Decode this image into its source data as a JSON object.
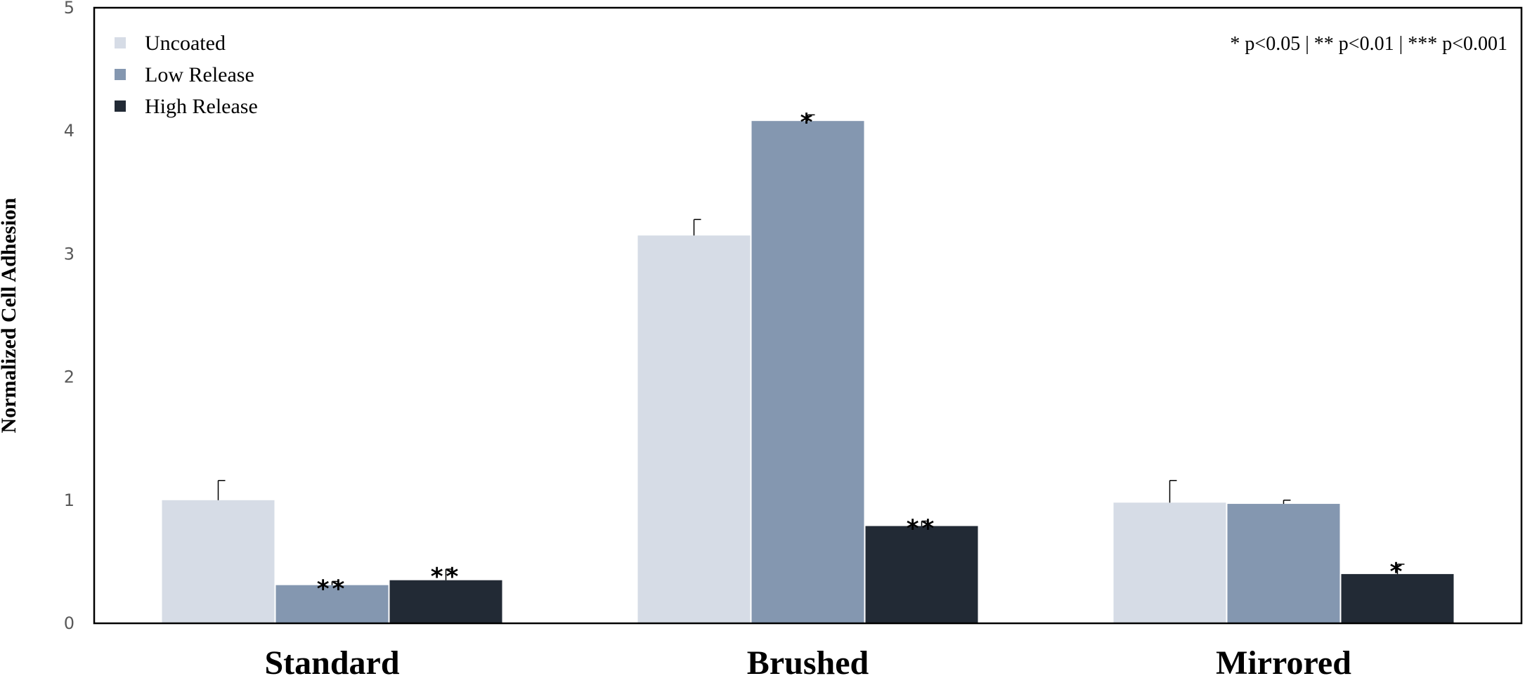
{
  "chart_data": {
    "type": "bar",
    "ylabel": "Normalized Cell Adhesion",
    "xlabel": "",
    "ylim": [
      0,
      5
    ],
    "yticks": [
      "0",
      "1",
      "2",
      "3",
      "4",
      "5"
    ],
    "categories": [
      "Standard",
      "Brushed",
      "Mirrored"
    ],
    "series": [
      {
        "name": "Uncoated",
        "color": "#d6dce6",
        "values": [
          1.0,
          3.15,
          0.98
        ],
        "errors": [
          0.16,
          0.13,
          0.18
        ],
        "significance": [
          "",
          "",
          ""
        ]
      },
      {
        "name": "Low Release",
        "color": "#8497b0",
        "values": [
          0.31,
          4.08,
          0.97
        ],
        "errors": [
          0.03,
          0.05,
          0.03
        ],
        "significance": [
          "**",
          "*",
          ""
        ]
      },
      {
        "name": "High Release",
        "color": "#222a35",
        "values": [
          0.35,
          0.79,
          0.4
        ],
        "errors": [
          0.09,
          0.04,
          0.08
        ],
        "significance": [
          "**",
          "**",
          "*"
        ]
      }
    ],
    "legend_position": "top-left",
    "annotation": "* p<0.05 | ** p<0.01 | *** p<0.001",
    "grid": false
  }
}
